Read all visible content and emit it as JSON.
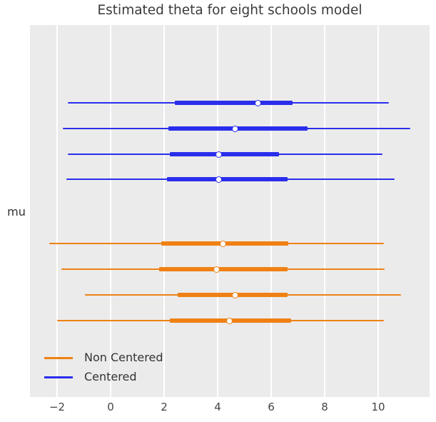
{
  "title": "Estimated theta for eight schools model",
  "ylabel": "mu",
  "legend": {
    "entries": [
      {
        "label": "Non Centered",
        "color": "#ef8114"
      },
      {
        "label": "Centered",
        "color": "#2a2eec"
      }
    ]
  },
  "colors": {
    "centered": "#2a2eec",
    "non_centered": "#ef8114",
    "plot_background": "#ebebeb",
    "gridline": "#ffffff",
    "text": "#333333"
  },
  "chart_data": {
    "type": "forest",
    "title": "Estimated theta for eight schools model",
    "ylabel": "mu",
    "xlim": [
      -3.0,
      11.9
    ],
    "grid": "vertical-white-on-gray",
    "legend_position": "lower-left-inside",
    "x_ticks": [
      {
        "value": -2,
        "label": "−2"
      },
      {
        "value": 0,
        "label": "0"
      },
      {
        "value": 2,
        "label": "2"
      },
      {
        "value": 4,
        "label": "4"
      },
      {
        "value": 6,
        "label": "6"
      },
      {
        "value": 8,
        "label": "8"
      },
      {
        "value": 10,
        "label": "10"
      }
    ],
    "series": [
      {
        "name": "Centered",
        "color": "#2a2eec",
        "rows": [
          {
            "interval": [
              -1.6,
              10.4
            ],
            "quartile": [
              2.4,
              6.8
            ],
            "point": 5.5
          },
          {
            "interval": [
              -1.8,
              11.2
            ],
            "quartile": [
              2.15,
              7.35
            ],
            "point": 4.65
          },
          {
            "interval": [
              -1.6,
              10.15
            ],
            "quartile": [
              2.2,
              6.3
            ],
            "point": 4.05
          },
          {
            "interval": [
              -1.65,
              10.6
            ],
            "quartile": [
              2.1,
              6.6
            ],
            "point": 4.05
          }
        ]
      },
      {
        "name": "Non Centered",
        "color": "#ef8114",
        "rows": [
          {
            "interval": [
              -2.3,
              10.2
            ],
            "quartile": [
              1.9,
              6.65
            ],
            "point": 4.2
          },
          {
            "interval": [
              -1.85,
              10.25
            ],
            "quartile": [
              1.8,
              6.6
            ],
            "point": 3.95
          },
          {
            "interval": [
              -0.95,
              10.85
            ],
            "quartile": [
              2.5,
              6.6
            ],
            "point": 4.65
          },
          {
            "interval": [
              -2.0,
              10.2
            ],
            "quartile": [
              2.2,
              6.75
            ],
            "point": 4.45
          }
        ]
      }
    ]
  }
}
